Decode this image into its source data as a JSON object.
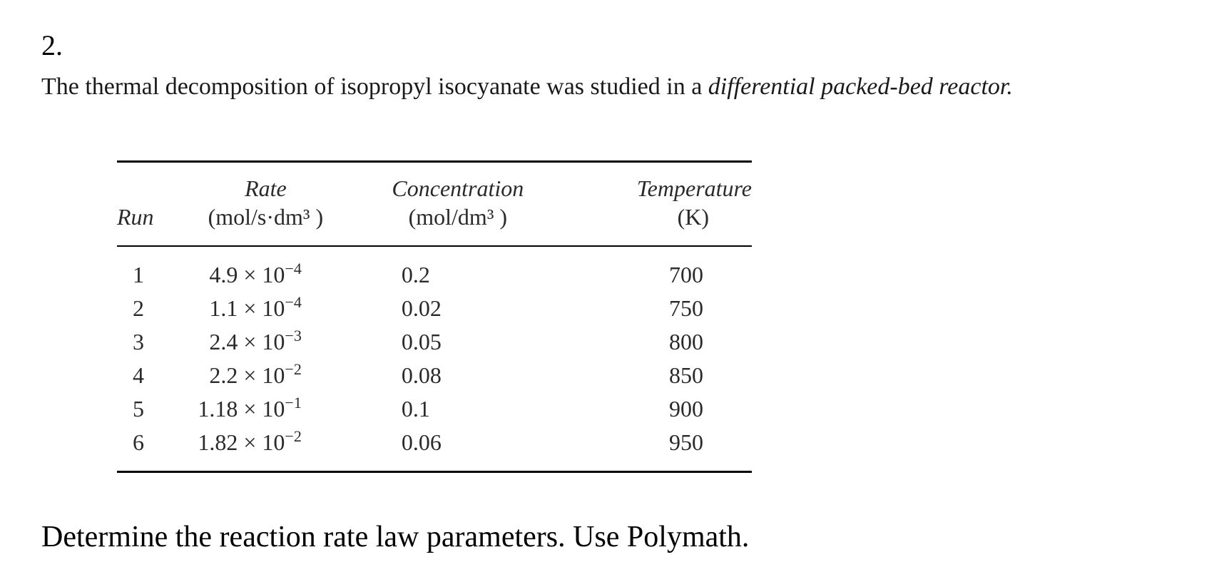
{
  "problem_number": "2.",
  "intro": {
    "text": "The thermal decomposition of isopropyl isocyanate was studied in a ",
    "emphasis": "differential packed-bed reactor."
  },
  "table": {
    "headers": {
      "run": "Run",
      "rate": "Rate",
      "rate_unit": "(mol/s·dm³ )",
      "concentration": "Concentration",
      "concentration_unit": "(mol/dm³ )",
      "temperature": "Temperature",
      "temperature_unit": "(K)"
    },
    "rows": [
      {
        "run": "1",
        "rate_mantissa": "4.9 × 10",
        "rate_exp": "−4",
        "concentration": "0.2",
        "temperature": "700"
      },
      {
        "run": "2",
        "rate_mantissa": "1.1 × 10",
        "rate_exp": "−4",
        "concentration": "0.02",
        "temperature": "750"
      },
      {
        "run": "3",
        "rate_mantissa": "2.4 × 10",
        "rate_exp": "−3",
        "concentration": "0.05",
        "temperature": "800"
      },
      {
        "run": "4",
        "rate_mantissa": "2.2 × 10",
        "rate_exp": "−2",
        "concentration": "0.08",
        "temperature": "850"
      },
      {
        "run": "5",
        "rate_mantissa": "1.18 × 10",
        "rate_exp": "−1",
        "concentration": "0.1",
        "temperature": "900"
      },
      {
        "run": "6",
        "rate_mantissa": "1.82 × 10",
        "rate_exp": "−2",
        "concentration": "0.06",
        "temperature": "950"
      }
    ]
  },
  "question": "Determine the reaction rate law parameters. Use Polymath."
}
